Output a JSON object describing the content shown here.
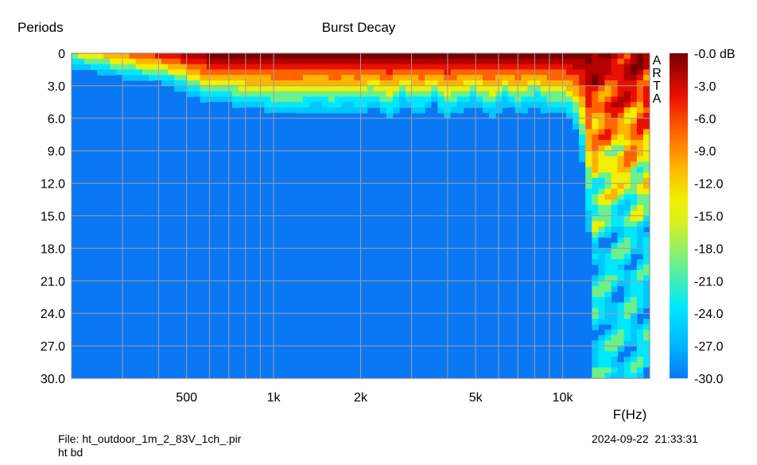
{
  "chart_data": {
    "type": "heatmap",
    "title": "Burst Decay",
    "ylabel": "Periods",
    "xlabel": "F(Hz)",
    "x_scale": "log",
    "xlim": [
      200,
      20000
    ],
    "ylim": [
      0,
      30
    ],
    "y_inverted": true,
    "x_tick_labels": [
      {
        "value": 500,
        "label": "500"
      },
      {
        "value": 1000,
        "label": "1k"
      },
      {
        "value": 2000,
        "label": "2k"
      },
      {
        "value": 5000,
        "label": "5k"
      },
      {
        "value": 10000,
        "label": "10k"
      }
    ],
    "y_tick_labels": [
      "0",
      "3.0",
      "6.0",
      "9.0",
      "12.0",
      "15.0",
      "18.0",
      "21.0",
      "24.0",
      "27.0",
      "30.0"
    ],
    "colorbar": {
      "labels": [
        "-0.0 dB",
        "-3.0",
        "-6.0",
        "-9.0",
        "-12.0",
        "-15.0",
        "-18.0",
        "-21.0",
        "-24.0",
        "-27.0",
        "-30.0"
      ],
      "range_db": [
        -30,
        0
      ]
    },
    "decay_periods_to_floor": [
      {
        "freq": 210,
        "periods": 1.5
      },
      {
        "freq": 250,
        "periods": 2.0
      },
      {
        "freq": 300,
        "periods": 2.5
      },
      {
        "freq": 350,
        "periods": 2.8
      },
      {
        "freq": 420,
        "periods": 3.0
      },
      {
        "freq": 500,
        "periods": 4.0
      },
      {
        "freq": 600,
        "periods": 5.0
      },
      {
        "freq": 700,
        "periods": 5.0
      },
      {
        "freq": 800,
        "periods": 5.5
      },
      {
        "freq": 900,
        "periods": 5.5
      },
      {
        "freq": 1000,
        "periods": 6.0
      },
      {
        "freq": 1200,
        "periods": 6.0
      },
      {
        "freq": 1400,
        "periods": 5.5
      },
      {
        "freq": 1600,
        "periods": 6.0
      },
      {
        "freq": 1800,
        "periods": 5.5
      },
      {
        "freq": 2000,
        "periods": 6.0
      },
      {
        "freq": 2200,
        "periods": 5.0
      },
      {
        "freq": 2500,
        "periods": 6.5
      },
      {
        "freq": 2800,
        "periods": 5.0
      },
      {
        "freq": 3200,
        "periods": 6.0
      },
      {
        "freq": 3600,
        "periods": 5.0
      },
      {
        "freq": 4000,
        "periods": 6.5
      },
      {
        "freq": 4500,
        "periods": 5.5
      },
      {
        "freq": 5000,
        "periods": 5.0
      },
      {
        "freq": 5600,
        "periods": 6.5
      },
      {
        "freq": 6300,
        "periods": 5.0
      },
      {
        "freq": 7000,
        "periods": 6.0
      },
      {
        "freq": 8000,
        "periods": 5.0
      },
      {
        "freq": 9000,
        "periods": 6.0
      },
      {
        "freq": 10000,
        "periods": 6.0
      },
      {
        "freq": 11000,
        "periods": 7.0
      },
      {
        "freq": 12000,
        "periods": 12.0
      },
      {
        "freq": 13000,
        "periods": 30.0
      },
      {
        "freq": 15000,
        "periods": 30.0
      },
      {
        "freq": 17000,
        "periods": 30.0
      },
      {
        "freq": 19000,
        "periods": 30.0
      },
      {
        "freq": 20000,
        "periods": 30.0
      }
    ]
  },
  "watermark": "ARTA",
  "footer": {
    "file": "File: ht_outdoor_1m_2_83V_1ch_.pir",
    "note": "ht bd",
    "timestamp": "2024-09-22  21:33:31"
  },
  "colors": {
    "floor": "#0a78f4",
    "grid": "#a0a0a0",
    "colormap": [
      "#0a78f4",
      "#00c8ff",
      "#00e8ff",
      "#6cf08c",
      "#f0f000",
      "#ffb400",
      "#ff6400",
      "#e81000",
      "#b40000",
      "#780000"
    ]
  }
}
